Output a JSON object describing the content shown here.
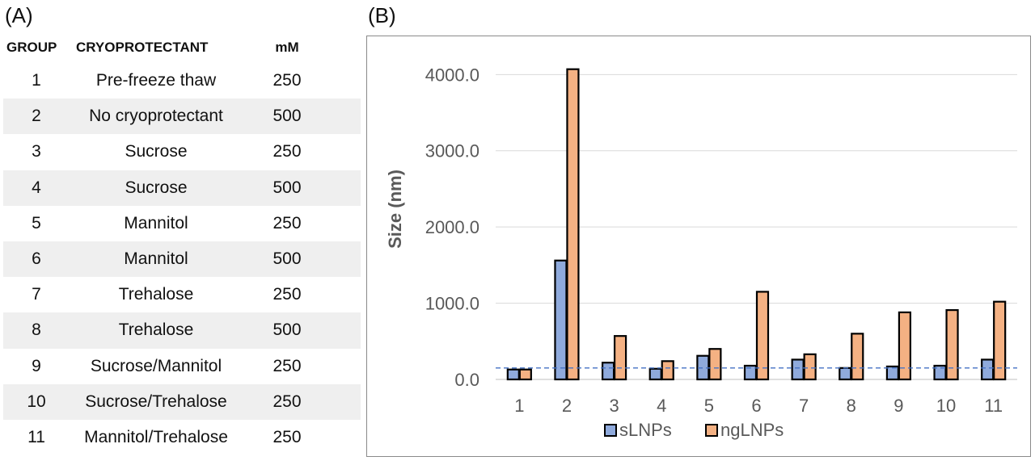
{
  "panel_a_label": "(A)",
  "panel_b_label": "(B)",
  "table": {
    "headers": {
      "group": "GROUP",
      "cryoprotectant": "CRYOPROTECTANT",
      "mm": "mM"
    },
    "rows": [
      {
        "group": "1",
        "cryoprotectant": "Pre-freeze thaw",
        "mm": "250"
      },
      {
        "group": "2",
        "cryoprotectant": "No cryoprotectant",
        "mm": "500"
      },
      {
        "group": "3",
        "cryoprotectant": "Sucrose",
        "mm": "250"
      },
      {
        "group": "4",
        "cryoprotectant": "Sucrose",
        "mm": "500"
      },
      {
        "group": "5",
        "cryoprotectant": "Mannitol",
        "mm": "250"
      },
      {
        "group": "6",
        "cryoprotectant": "Mannitol",
        "mm": "500"
      },
      {
        "group": "7",
        "cryoprotectant": "Trehalose",
        "mm": "250"
      },
      {
        "group": "8",
        "cryoprotectant": "Trehalose",
        "mm": "500"
      },
      {
        "group": "9",
        "cryoprotectant": "Sucrose/Mannitol",
        "mm": "250"
      },
      {
        "group": "10",
        "cryoprotectant": "Sucrose/Trehalose",
        "mm": "250"
      },
      {
        "group": "11",
        "cryoprotectant": "Mannitol/Trehalose",
        "mm": "250"
      }
    ]
  },
  "chart_data": {
    "type": "bar",
    "ylabel": "Size (nm)",
    "xlabel": "",
    "categories": [
      "1",
      "2",
      "3",
      "4",
      "5",
      "6",
      "7",
      "8",
      "9",
      "10",
      "11"
    ],
    "series": [
      {
        "name": "sLNPs",
        "color": "#8faadc",
        "values": [
          130,
          1560,
          220,
          140,
          310,
          180,
          260,
          150,
          170,
          180,
          260
        ]
      },
      {
        "name": "ngLNPs",
        "color": "#f4b183",
        "values": [
          130,
          4070,
          570,
          240,
          400,
          1150,
          330,
          600,
          880,
          910,
          1020
        ]
      }
    ],
    "ylim": [
      0,
      4300
    ],
    "yticks": [
      "0.0",
      "1000.0",
      "2000.0",
      "3000.0",
      "4000.0"
    ],
    "ytick_values": [
      0,
      1000,
      2000,
      3000,
      4000
    ],
    "reference_line": 150,
    "reference_line_color": "#4472c4",
    "grid": true,
    "legend_position": "bottom"
  }
}
